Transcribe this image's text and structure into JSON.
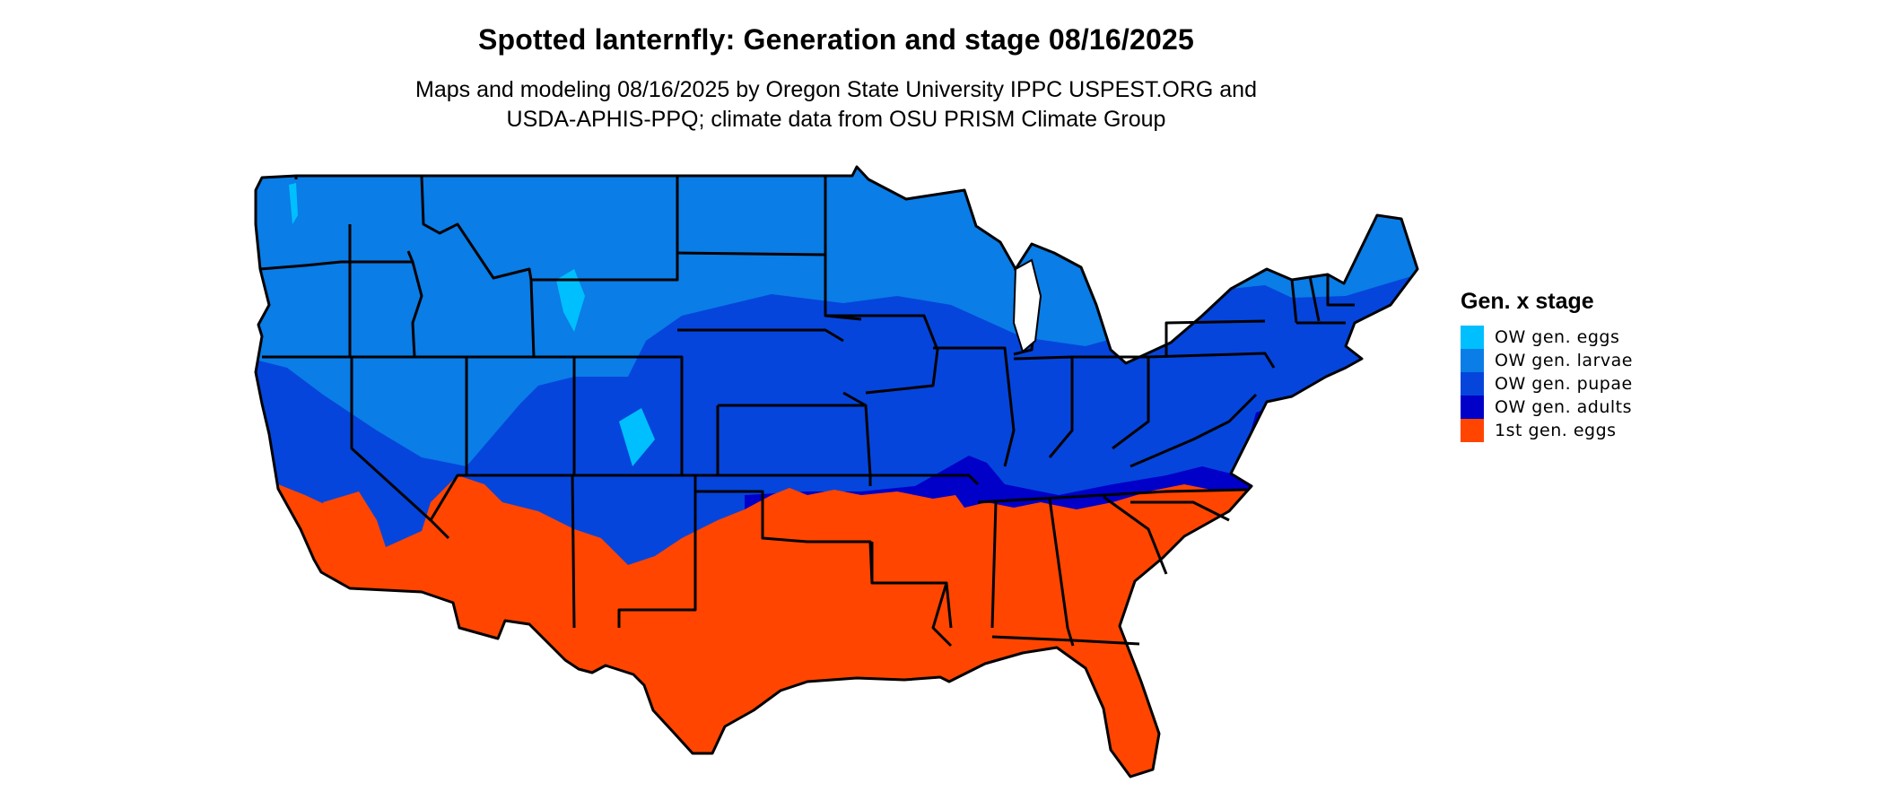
{
  "title": "Spotted lanternfly: Generation and stage 08/16/2025",
  "subtitle_line1": "Maps and modeling 08/16/2025 by Oregon State University IPPC USPEST.ORG and",
  "subtitle_line2": "USDA-APHIS-PPQ; climate data from OSU PRISM Climate Group",
  "legend": {
    "title": "Gen. x stage",
    "items": [
      {
        "label": "OW gen. eggs",
        "color": "#00bfff"
      },
      {
        "label": "OW gen. larvae",
        "color": "#0a7de6"
      },
      {
        "label": "OW gen. pupae",
        "color": "#0545dc"
      },
      {
        "label": "OW gen. adults",
        "color": "#0000c8"
      },
      {
        "label": "1st gen. eggs",
        "color": "#ff4500"
      }
    ]
  }
}
